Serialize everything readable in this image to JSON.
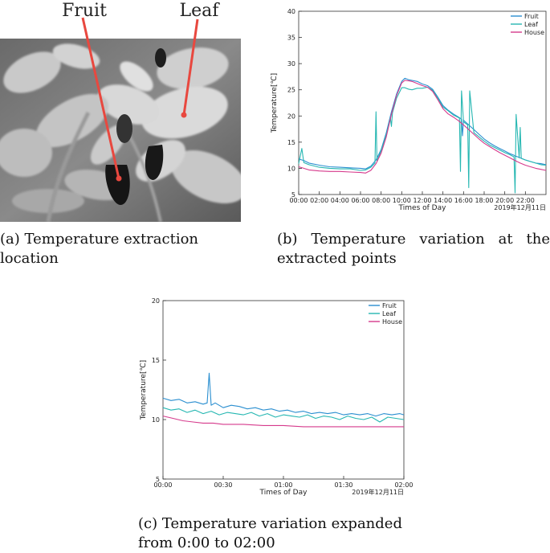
{
  "panel_a": {
    "labels": {
      "fruit": "Fruit",
      "leaf": "Leaf"
    },
    "caption": "(a) Temperature extraction location",
    "pointer_color": "#e8483f"
  },
  "panel_b": {
    "caption": "(b) Temperature variation at the extracted points"
  },
  "panel_c": {
    "caption": "(c) Temperature variation expanded from 0:00 to 02:00"
  },
  "chart_data": [
    {
      "id": "b",
      "type": "line",
      "xlabel": "Times of Day",
      "ylabel": "Temperature[℃]",
      "date_note": "2019年12月11日",
      "xlim": [
        0,
        24
      ],
      "ylim": [
        5,
        40
      ],
      "x_ticks": [
        0,
        2,
        4,
        6,
        8,
        10,
        12,
        14,
        16,
        18,
        20,
        22
      ],
      "x_tick_labels": [
        "00:00",
        "02:00",
        "04:00",
        "06:00",
        "08:00",
        "10:00",
        "12:00",
        "14:00",
        "16:00",
        "18:00",
        "20:00",
        "22:00"
      ],
      "y_ticks": [
        5,
        10,
        15,
        20,
        25,
        30,
        35,
        40
      ],
      "legend_position": "top-right",
      "series": [
        {
          "name": "Fruit",
          "color": "#2b8fd0",
          "x": [
            0,
            0.3,
            0.5,
            1,
            2,
            3,
            4,
            5,
            6,
            6.5,
            7,
            7.5,
            8,
            8.5,
            9,
            9.5,
            10,
            10.3,
            10.7,
            11,
            11.5,
            12,
            12.5,
            13,
            13.5,
            14,
            14.5,
            15,
            15.5,
            15.8,
            15.9,
            16.0,
            16.5,
            17,
            17.5,
            18,
            18.5,
            19,
            19.5,
            20,
            20.5,
            20.9,
            21.0,
            21.1,
            21.5,
            22,
            22.5,
            23,
            23.5,
            24
          ],
          "y": [
            11.8,
            11.6,
            11.5,
            11.0,
            10.6,
            10.3,
            10.2,
            10.1,
            10.0,
            9.9,
            10.4,
            11.6,
            13.6,
            16.8,
            20.8,
            24.2,
            26.6,
            27.2,
            26.9,
            26.8,
            26.6,
            26.1,
            25.8,
            25.1,
            23.6,
            22.0,
            21.1,
            20.4,
            19.8,
            19.4,
            16.2,
            19.2,
            18.3,
            17.4,
            16.5,
            15.6,
            14.9,
            14.3,
            13.8,
            13.3,
            12.8,
            12.5,
            12.3,
            12.3,
            12.0,
            11.6,
            11.3,
            11.0,
            10.9,
            10.7
          ]
        },
        {
          "name": "Leaf",
          "color": "#26b7b2",
          "x": [
            0,
            0.3,
            0.5,
            1,
            2,
            3,
            4,
            5,
            6,
            6.5,
            7,
            7.4,
            7.5,
            7.6,
            8,
            8.5,
            8.9,
            9.0,
            9.1,
            9.5,
            10,
            10.3,
            10.7,
            11,
            11.5,
            12,
            12.5,
            13,
            13.5,
            14,
            14.5,
            15,
            15.6,
            15.7,
            15.8,
            16.0,
            16.4,
            16.5,
            16.6,
            17,
            17.5,
            18,
            18.5,
            19,
            19.5,
            20,
            20.5,
            20.9,
            21.0,
            21.1,
            21.4,
            21.5,
            21.6,
            22,
            22.5,
            23,
            23.5,
            24
          ],
          "y": [
            10.9,
            13.8,
            11.1,
            10.7,
            10.2,
            10.0,
            9.9,
            9.9,
            9.6,
            9.7,
            10.2,
            11.0,
            20.8,
            11.4,
            13.4,
            16.4,
            19.6,
            18.0,
            20.6,
            23.4,
            25.4,
            25.4,
            25.1,
            25.0,
            25.3,
            25.3,
            25.5,
            24.9,
            23.4,
            21.7,
            21.0,
            20.2,
            19.6,
            9.4,
            24.8,
            18.9,
            18.3,
            6.3,
            24.8,
            16.8,
            16.0,
            15.2,
            14.5,
            14.0,
            13.5,
            13.0,
            12.6,
            12.2,
            5.3,
            20.3,
            12.0,
            17.8,
            11.9,
            11.6,
            11.3,
            11.0,
            10.7,
            10.6
          ]
        },
        {
          "name": "House",
          "color": "#d63a8c",
          "x": [
            0,
            0.5,
            1,
            2,
            3,
            4,
            5,
            6,
            6.5,
            7,
            7.5,
            8,
            8.5,
            9,
            9.5,
            10,
            10.3,
            10.7,
            11,
            11.5,
            12,
            12.5,
            13,
            13.5,
            14,
            14.5,
            15,
            15.5,
            16,
            16.5,
            17,
            17.5,
            18,
            18.5,
            19,
            19.5,
            20,
            20.5,
            21,
            21.5,
            22,
            22.5,
            23,
            23.5,
            24
          ],
          "y": [
            10.3,
            10.0,
            9.7,
            9.5,
            9.4,
            9.4,
            9.3,
            9.2,
            9.1,
            9.6,
            10.9,
            12.9,
            16.0,
            20.3,
            23.9,
            26.3,
            26.8,
            26.7,
            26.6,
            26.2,
            25.8,
            25.5,
            24.7,
            23.1,
            21.4,
            20.4,
            19.8,
            19.1,
            18.3,
            17.4,
            16.5,
            15.6,
            14.8,
            14.2,
            13.6,
            13.0,
            12.5,
            12.0,
            11.5,
            11.0,
            10.6,
            10.3,
            10.0,
            9.8,
            9.6
          ]
        }
      ]
    },
    {
      "id": "c",
      "type": "line",
      "xlabel": "Times of Day",
      "ylabel": "Temperature[℃]",
      "date_note": "2019年12月11日",
      "xlim": [
        0,
        120
      ],
      "ylim": [
        5,
        20
      ],
      "x_ticks": [
        0,
        30,
        60,
        90,
        120
      ],
      "x_tick_labels": [
        "00:00",
        "00:30",
        "01:00",
        "01:30",
        "02:00"
      ],
      "y_ticks": [
        5,
        10,
        15,
        20
      ],
      "legend_position": "top-right",
      "series": [
        {
          "name": "Fruit",
          "color": "#2b8fd0",
          "x": [
            0,
            4,
            8,
            12,
            16,
            20,
            22,
            23,
            24,
            26,
            30,
            34,
            38,
            42,
            46,
            50,
            54,
            58,
            62,
            66,
            70,
            74,
            78,
            82,
            86,
            90,
            94,
            98,
            102,
            106,
            110,
            114,
            118,
            120
          ],
          "y": [
            11.8,
            11.6,
            11.7,
            11.4,
            11.5,
            11.3,
            11.4,
            13.9,
            11.2,
            11.4,
            11.0,
            11.2,
            11.1,
            10.9,
            11.0,
            10.8,
            10.9,
            10.7,
            10.8,
            10.6,
            10.7,
            10.5,
            10.6,
            10.5,
            10.6,
            10.4,
            10.5,
            10.4,
            10.5,
            10.3,
            10.5,
            10.4,
            10.5,
            10.4
          ]
        },
        {
          "name": "Leaf",
          "color": "#26b7b2",
          "x": [
            0,
            4,
            8,
            12,
            16,
            20,
            24,
            28,
            32,
            36,
            40,
            44,
            48,
            52,
            56,
            60,
            64,
            68,
            72,
            76,
            80,
            84,
            88,
            92,
            96,
            100,
            104,
            108,
            112,
            116,
            120
          ],
          "y": [
            11.0,
            10.8,
            10.9,
            10.6,
            10.8,
            10.5,
            10.7,
            10.4,
            10.6,
            10.5,
            10.4,
            10.6,
            10.3,
            10.5,
            10.2,
            10.4,
            10.3,
            10.2,
            10.4,
            10.1,
            10.3,
            10.2,
            10.0,
            10.3,
            10.1,
            10.0,
            10.2,
            9.8,
            10.2,
            10.1,
            10.0
          ]
        },
        {
          "name": "House",
          "color": "#d63a8c",
          "x": [
            0,
            5,
            10,
            15,
            20,
            25,
            30,
            40,
            50,
            60,
            70,
            80,
            90,
            100,
            110,
            120
          ],
          "y": [
            10.3,
            10.1,
            9.9,
            9.8,
            9.7,
            9.7,
            9.6,
            9.6,
            9.5,
            9.5,
            9.4,
            9.4,
            9.4,
            9.4,
            9.4,
            9.4
          ]
        }
      ]
    }
  ]
}
